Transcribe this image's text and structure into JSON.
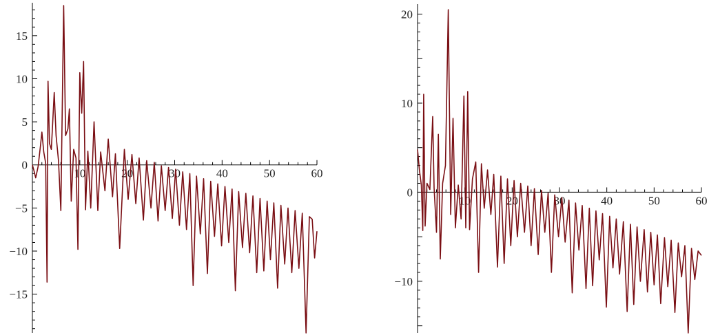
{
  "colors": {
    "curve": "#7a0f14",
    "axis": "#000000",
    "background": "#ffffff"
  },
  "chart_data": [
    {
      "type": "line",
      "title": "",
      "xlabel": "",
      "ylabel": "",
      "xlim": [
        0,
        60
      ],
      "ylim": [
        -19.5,
        18.5
      ],
      "grid": false,
      "legend": "none",
      "x_ticks": [
        10,
        20,
        30,
        40,
        50,
        60
      ],
      "x_tick_labels": [
        "10",
        "20",
        "30",
        "40",
        "50",
        "60"
      ],
      "y_ticks": [
        -15,
        -10,
        -5,
        5,
        10,
        15
      ],
      "y_tick_labels": [
        "−15",
        "−10",
        "−5",
        "5",
        "10",
        "15"
      ],
      "y_zero_label": "0",
      "series": [
        {
          "points": [
            [
              0,
              0
            ],
            [
              0.3,
              -0.6
            ],
            [
              0.7,
              -1.5
            ],
            [
              1.2,
              -0.2
            ],
            [
              1.7,
              2.2
            ],
            [
              2,
              3.8
            ],
            [
              2.4,
              1.5
            ],
            [
              2.8,
              0.2
            ],
            [
              3.1,
              -13.6
            ],
            [
              3.3,
              9.7
            ],
            [
              3.6,
              2.5
            ],
            [
              4.0,
              1.8
            ],
            [
              4.6,
              8.4
            ],
            [
              5.0,
              3.4
            ],
            [
              5.5,
              0.5
            ],
            [
              6.0,
              -5.3
            ],
            [
              6.6,
              18.5
            ],
            [
              7.0,
              3.4
            ],
            [
              7.5,
              4.2
            ],
            [
              7.8,
              6.5
            ],
            [
              8.2,
              -4.2
            ],
            [
              8.7,
              1.8
            ],
            [
              9.2,
              0.8
            ],
            [
              9.6,
              -9.8
            ],
            [
              10.0,
              10.7
            ],
            [
              10.4,
              6.0
            ],
            [
              10.8,
              12.0
            ],
            [
              11.2,
              -5.2
            ],
            [
              11.7,
              1.6
            ],
            [
              12.3,
              -5.0
            ],
            [
              13.0,
              5.0
            ],
            [
              13.8,
              -5.3
            ],
            [
              14.4,
              1.5
            ],
            [
              15.3,
              -3.0
            ],
            [
              16.0,
              3.0
            ],
            [
              16.9,
              -3.7
            ],
            [
              17.5,
              1.3
            ],
            [
              18.4,
              -9.7
            ],
            [
              19.4,
              1.8
            ],
            [
              20.2,
              -4.0
            ],
            [
              21.0,
              1.2
            ],
            [
              21.8,
              -4.5
            ],
            [
              22.5,
              0.8
            ],
            [
              23.4,
              -6.4
            ],
            [
              24.1,
              0.5
            ],
            [
              25.0,
              -5.0
            ],
            [
              25.7,
              0.3
            ],
            [
              26.5,
              -6.5
            ],
            [
              27.2,
              -0.1
            ],
            [
              28.0,
              -5.3
            ],
            [
              28.7,
              -0.3
            ],
            [
              29.5,
              -6.2
            ],
            [
              30.2,
              -0.5
            ],
            [
              31.0,
              -7.0
            ],
            [
              31.7,
              -0.8
            ],
            [
              32.5,
              -7.5
            ],
            [
              33.2,
              -1.0
            ],
            [
              33.9,
              -14.0
            ],
            [
              34.6,
              -1.3
            ],
            [
              35.4,
              -8.0
            ],
            [
              36.1,
              -1.6
            ],
            [
              36.9,
              -12.6
            ],
            [
              37.6,
              -1.9
            ],
            [
              38.4,
              -8.3
            ],
            [
              39.1,
              -2.2
            ],
            [
              39.9,
              -9.4
            ],
            [
              40.6,
              -2.5
            ],
            [
              41.4,
              -9.0
            ],
            [
              42.1,
              -2.8
            ],
            [
              42.8,
              -14.6
            ],
            [
              43.5,
              -3.1
            ],
            [
              44.3,
              -9.6
            ],
            [
              45.0,
              -3.3
            ],
            [
              45.8,
              -10.2
            ],
            [
              46.5,
              -3.6
            ],
            [
              47.3,
              -12.5
            ],
            [
              48.0,
              -3.9
            ],
            [
              48.8,
              -12.3
            ],
            [
              49.5,
              -4.2
            ],
            [
              50.2,
              -11.0
            ],
            [
              50.9,
              -4.4
            ],
            [
              51.7,
              -14.3
            ],
            [
              52.4,
              -4.7
            ],
            [
              53.2,
              -11.5
            ],
            [
              53.9,
              -5.0
            ],
            [
              54.7,
              -12.5
            ],
            [
              55.4,
              -5.3
            ],
            [
              56.2,
              -12.0
            ],
            [
              56.9,
              -5.6
            ],
            [
              57.7,
              -19.5
            ],
            [
              58.4,
              -6.0
            ],
            [
              59.0,
              -6.3
            ],
            [
              59.5,
              -10.8
            ],
            [
              60.0,
              -7.7
            ]
          ]
        }
      ]
    },
    {
      "type": "line",
      "title": "",
      "xlabel": "",
      "ylabel": "",
      "xlim": [
        0,
        60
      ],
      "ylim": [
        -15.8,
        20.5
      ],
      "grid": false,
      "legend": "none",
      "x_ticks": [
        10,
        20,
        30,
        40,
        50,
        60
      ],
      "x_tick_labels": [
        "10",
        "20",
        "30",
        "40",
        "50",
        "60"
      ],
      "y_ticks": [
        -10,
        10,
        20
      ],
      "y_tick_labels": [
        "−10",
        "10",
        "20"
      ],
      "y_zero_label": "0",
      "series": [
        {
          "points": [
            [
              0,
              4.8
            ],
            [
              0.4,
              2.5
            ],
            [
              0.8,
              0.8
            ],
            [
              1.1,
              -4.3
            ],
            [
              1.3,
              11.0
            ],
            [
              1.6,
              -3.8
            ],
            [
              2.0,
              1.0
            ],
            [
              2.6,
              0.3
            ],
            [
              3.2,
              8.5
            ],
            [
              3.5,
              0.5
            ],
            [
              4.0,
              -4.5
            ],
            [
              4.4,
              6.5
            ],
            [
              4.8,
              -7.5
            ],
            [
              5.3,
              1.0
            ],
            [
              5.9,
              3.0
            ],
            [
              6.5,
              20.5
            ],
            [
              7.0,
              -2.5
            ],
            [
              7.5,
              8.3
            ],
            [
              8.0,
              -4.0
            ],
            [
              8.6,
              0.8
            ],
            [
              9.2,
              -3.0
            ],
            [
              9.8,
              10.8
            ],
            [
              10.2,
              -4.0
            ],
            [
              10.6,
              11.3
            ],
            [
              11.0,
              -4.2
            ],
            [
              11.6,
              1.5
            ],
            [
              12.3,
              3.4
            ],
            [
              12.9,
              -9.0
            ],
            [
              13.5,
              3.2
            ],
            [
              14.1,
              -1.8
            ],
            [
              14.8,
              2.5
            ],
            [
              15.5,
              -2.5
            ],
            [
              16.1,
              2.0
            ],
            [
              16.9,
              -8.4
            ],
            [
              17.6,
              1.8
            ],
            [
              18.3,
              -8.0
            ],
            [
              19.0,
              1.5
            ],
            [
              19.7,
              -6.0
            ],
            [
              20.4,
              1.3
            ],
            [
              21.1,
              -5.0
            ],
            [
              21.8,
              1.0
            ],
            [
              22.6,
              -4.5
            ],
            [
              23.3,
              0.7
            ],
            [
              24.0,
              -6.0
            ],
            [
              24.7,
              0.4
            ],
            [
              25.5,
              -7.0
            ],
            [
              26.2,
              0.2
            ],
            [
              26.9,
              -4.5
            ],
            [
              27.6,
              -0.1
            ],
            [
              28.3,
              -9.0
            ],
            [
              29.0,
              -0.3
            ],
            [
              29.8,
              -5.0
            ],
            [
              30.5,
              -0.6
            ],
            [
              31.2,
              -5.6
            ],
            [
              32.0,
              -0.9
            ],
            [
              32.7,
              -11.3
            ],
            [
              33.4,
              -1.2
            ],
            [
              34.1,
              -6.5
            ],
            [
              34.8,
              -1.5
            ],
            [
              35.6,
              -10.8
            ],
            [
              36.3,
              -1.8
            ],
            [
              37.0,
              -10.5
            ],
            [
              37.7,
              -2.1
            ],
            [
              38.4,
              -7.6
            ],
            [
              39.1,
              -2.4
            ],
            [
              39.9,
              -12.9
            ],
            [
              40.6,
              -2.7
            ],
            [
              41.3,
              -8.5
            ],
            [
              42.0,
              -3.0
            ],
            [
              42.7,
              -9.2
            ],
            [
              43.5,
              -3.3
            ],
            [
              44.3,
              -13.4
            ],
            [
              45.0,
              -3.6
            ],
            [
              45.7,
              -12.6
            ],
            [
              46.4,
              -3.9
            ],
            [
              47.1,
              -10.0
            ],
            [
              47.9,
              -4.2
            ],
            [
              48.6,
              -11.2
            ],
            [
              49.3,
              -4.5
            ],
            [
              50.0,
              -10.4
            ],
            [
              50.7,
              -4.8
            ],
            [
              51.4,
              -12.5
            ],
            [
              52.2,
              -5.1
            ],
            [
              52.9,
              -10.6
            ],
            [
              53.6,
              -5.4
            ],
            [
              54.4,
              -13.5
            ],
            [
              55.1,
              -5.7
            ],
            [
              55.8,
              -9.5
            ],
            [
              56.5,
              -6.0
            ],
            [
              57.2,
              -15.8
            ],
            [
              57.9,
              -6.3
            ],
            [
              58.6,
              -9.8
            ],
            [
              59.3,
              -6.6
            ],
            [
              60.0,
              -7.1
            ]
          ]
        }
      ]
    }
  ]
}
